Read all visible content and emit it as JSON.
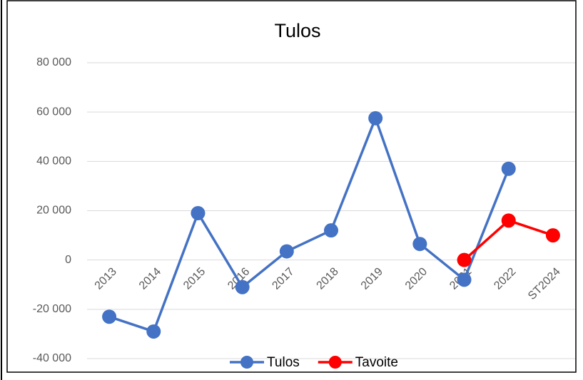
{
  "chart_data": {
    "type": "line",
    "title": "Tulos",
    "categories": [
      "2013",
      "2014",
      "2015",
      "2016",
      "2017",
      "2018",
      "2019",
      "2020",
      "2021",
      "2022",
      "ST2024"
    ],
    "series": [
      {
        "name": "Tulos",
        "color": "#4472c4",
        "values": [
          -23000,
          -29000,
          19000,
          -11000,
          3500,
          12000,
          57500,
          6500,
          -8000,
          37000,
          null
        ]
      },
      {
        "name": "Tavoite",
        "color": "#ff0000",
        "values": [
          null,
          null,
          null,
          null,
          null,
          null,
          null,
          null,
          0,
          16000,
          10000
        ]
      }
    ],
    "ylim": [
      -40000,
      80000
    ],
    "yticks": [
      {
        "value": -40000,
        "label": "-40 000"
      },
      {
        "value": -20000,
        "label": "-20 000"
      },
      0,
      {
        "value": 20000,
        "label": "20 000"
      },
      {
        "value": 40000,
        "label": "40 000"
      },
      {
        "value": 60000,
        "label": "60 000"
      },
      {
        "value": 80000,
        "label": "80 000"
      }
    ],
    "grid": true,
    "legend": "bottom"
  }
}
